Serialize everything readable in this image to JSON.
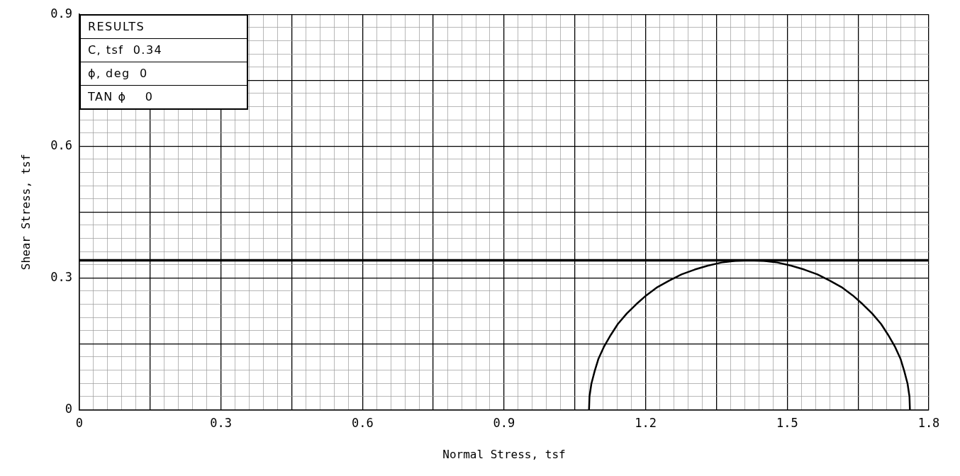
{
  "chart_data": {
    "type": "line",
    "xlabel": "Normal Stress, tsf",
    "ylabel": "Shear Stress, tsf",
    "annotations": [
      "RESULTS",
      "C, tsf  0.34",
      "ϕ, deg  0",
      "TAN ϕ    0"
    ],
    "series": [
      {
        "color": "#000000",
        "x": [
          1.08,
          1.081,
          1.085,
          1.092,
          1.1,
          1.112,
          1.126,
          1.141,
          1.16,
          1.18,
          1.201,
          1.225,
          1.25,
          1.276,
          1.304,
          1.332,
          1.361,
          1.39,
          1.42,
          1.45,
          1.479,
          1.508,
          1.536,
          1.564,
          1.59,
          1.615,
          1.639,
          1.66,
          1.68,
          1.699,
          1.714,
          1.728,
          1.74,
          1.748,
          1.755,
          1.759,
          1.76
        ],
        "values": [
          0,
          0.03,
          0.059,
          0.088,
          0.116,
          0.144,
          0.17,
          0.195,
          0.219,
          0.24,
          0.26,
          0.279,
          0.294,
          0.308,
          0.319,
          0.328,
          0.335,
          0.339,
          0.34,
          0.339,
          0.335,
          0.328,
          0.319,
          0.308,
          0.294,
          0.279,
          0.26,
          0.24,
          0.219,
          0.195,
          0.17,
          0.144,
          0.116,
          0.088,
          0.059,
          0.03,
          0
        ]
      }
    ],
    "ref_lines": [
      {
        "axis": "y",
        "value": 0.34,
        "color": "#000000",
        "line_style": "solid"
      }
    ],
    "xlim": [
      0,
      1.8
    ],
    "ylim": [
      0,
      0.9
    ],
    "xticks": [
      0,
      {
        "value": 0.03,
        "label": null
      },
      {
        "value": 0.06,
        "label": null
      },
      {
        "value": 0.09,
        "label": null
      },
      {
        "value": 0.12,
        "label": null
      },
      {
        "value": 0.15,
        "label": null
      },
      {
        "value": 0.18,
        "label": null
      },
      {
        "value": 0.21,
        "label": null
      },
      {
        "value": 0.24,
        "label": null
      },
      {
        "value": 0.27,
        "label": null
      },
      0.3,
      {
        "value": 0.33,
        "label": null
      },
      {
        "value": 0.36,
        "label": null
      },
      {
        "value": 0.39,
        "label": null
      },
      {
        "value": 0.42,
        "label": null
      },
      {
        "value": 0.45,
        "label": null
      },
      {
        "value": 0.48,
        "label": null
      },
      {
        "value": 0.51,
        "label": null
      },
      {
        "value": 0.54,
        "label": null
      },
      {
        "value": 0.57,
        "label": null
      },
      0.6,
      {
        "value": 0.63,
        "label": null
      },
      {
        "value": 0.66,
        "label": null
      },
      {
        "value": 0.69,
        "label": null
      },
      {
        "value": 0.72,
        "label": null
      },
      {
        "value": 0.75,
        "label": null
      },
      {
        "value": 0.78,
        "label": null
      },
      {
        "value": 0.81,
        "label": null
      },
      {
        "value": 0.84,
        "label": null
      },
      {
        "value": 0.87,
        "label": null
      },
      0.9,
      {
        "value": 0.93,
        "label": null
      },
      {
        "value": 0.96,
        "label": null
      },
      {
        "value": 0.99,
        "label": null
      },
      {
        "value": 1.02,
        "label": null
      },
      {
        "value": 1.05,
        "label": null
      },
      {
        "value": 1.08,
        "label": null
      },
      {
        "value": 1.11,
        "label": null
      },
      {
        "value": 1.14,
        "label": null
      },
      {
        "value": 1.17,
        "label": null
      },
      1.2,
      {
        "value": 1.23,
        "label": null
      },
      {
        "value": 1.26,
        "label": null
      },
      {
        "value": 1.29,
        "label": null
      },
      {
        "value": 1.32,
        "label": null
      },
      {
        "value": 1.35,
        "label": null
      },
      {
        "value": 1.38,
        "label": null
      },
      {
        "value": 1.41,
        "label": null
      },
      {
        "value": 1.44,
        "label": null
      },
      {
        "value": 1.47,
        "label": null
      },
      1.5,
      {
        "value": 1.53,
        "label": null
      },
      {
        "value": 1.56,
        "label": null
      },
      {
        "value": 1.59,
        "label": null
      },
      {
        "value": 1.62,
        "label": null
      },
      {
        "value": 1.65,
        "label": null
      },
      {
        "value": 1.68,
        "label": null
      },
      {
        "value": 1.71,
        "label": null
      },
      {
        "value": 1.74,
        "label": null
      },
      {
        "value": 1.77,
        "label": null
      },
      1.8
    ],
    "yticks": [
      0,
      {
        "value": 0.03,
        "label": null
      },
      {
        "value": 0.06,
        "label": null
      },
      {
        "value": 0.09,
        "label": null
      },
      {
        "value": 0.12,
        "label": null
      },
      {
        "value": 0.15,
        "label": null
      },
      {
        "value": 0.18,
        "label": null
      },
      {
        "value": 0.21,
        "label": null
      },
      {
        "value": 0.24,
        "label": null
      },
      {
        "value": 0.27,
        "label": null
      },
      0.3,
      {
        "value": 0.33,
        "label": null
      },
      {
        "value": 0.36,
        "label": null
      },
      {
        "value": 0.39,
        "label": null
      },
      {
        "value": 0.42,
        "label": null
      },
      {
        "value": 0.45,
        "label": null
      },
      {
        "value": 0.48,
        "label": null
      },
      {
        "value": 0.51,
        "label": null
      },
      {
        "value": 0.54,
        "label": null
      },
      {
        "value": 0.57,
        "label": null
      },
      0.6,
      {
        "value": 0.63,
        "label": null
      },
      {
        "value": 0.66,
        "label": null
      },
      {
        "value": 0.69,
        "label": null
      },
      {
        "value": 0.72,
        "label": null
      },
      {
        "value": 0.75,
        "label": null
      },
      {
        "value": 0.78,
        "label": null
      },
      {
        "value": 0.81,
        "label": null
      },
      {
        "value": 0.84,
        "label": null
      },
      {
        "value": 0.87,
        "label": null
      },
      0.9
    ],
    "grid": true,
    "legend": false,
    "marker": "none",
    "line_style": "solid"
  }
}
